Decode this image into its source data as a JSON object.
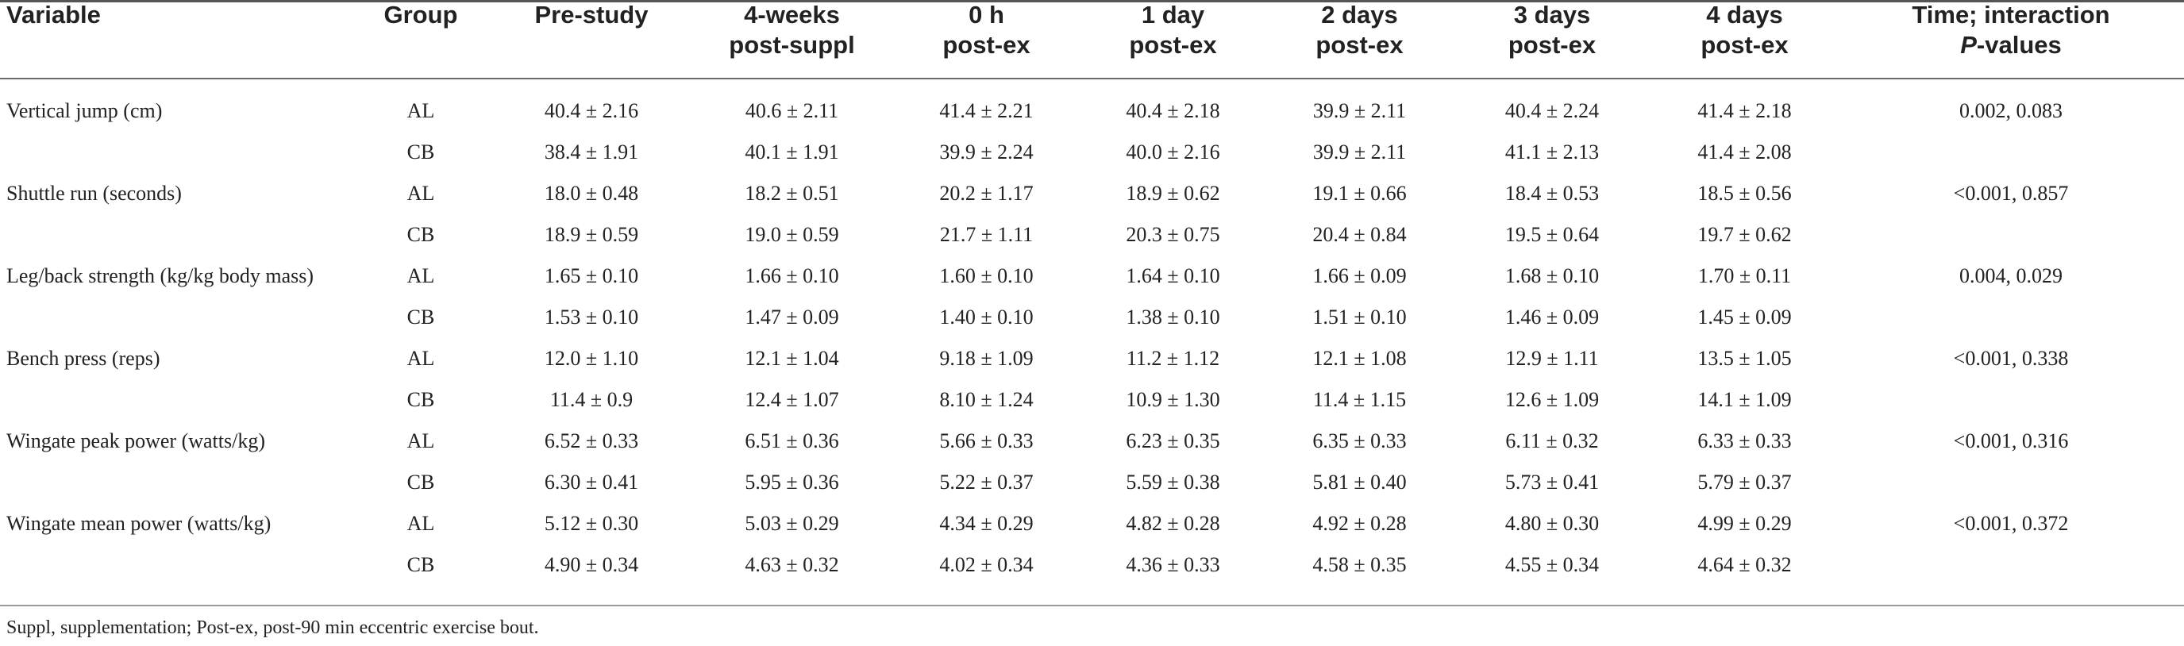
{
  "table": {
    "headers": {
      "variable": "Variable",
      "group": "Group",
      "pre_study": "Pre-study",
      "post_suppl_line1": "4-weeks",
      "post_suppl_line2": "post-suppl",
      "h0_line1": "0 h",
      "h0_line2": "post-ex",
      "d1_line1": "1 day",
      "d1_line2": "post-ex",
      "d2_line1": "2 days",
      "d2_line2": "post-ex",
      "d3_line1": "3 days",
      "d3_line2": "post-ex",
      "d4_line1": "4 days",
      "d4_line2": "post-ex",
      "pvals_line1": "Time; interaction",
      "pvals_line2_italic": "P",
      "pvals_line2_rest": "-values"
    },
    "rows": [
      {
        "variable": "Vertical jump (cm)",
        "group": "AL",
        "pre": "40.4 ± 2.16",
        "post_suppl": "40.6 ± 2.11",
        "h0": "41.4 ± 2.21",
        "d1": "40.4 ± 2.18",
        "d2": "39.9 ± 2.11",
        "d3": "40.4 ± 2.24",
        "d4": "41.4 ± 2.18",
        "pvals": "0.002, 0.083"
      },
      {
        "variable": "",
        "group": "CB",
        "pre": "38.4 ± 1.91",
        "post_suppl": "40.1 ± 1.91",
        "h0": "39.9 ± 2.24",
        "d1": "40.0 ± 2.16",
        "d2": "39.9 ± 2.11",
        "d3": "41.1 ± 2.13",
        "d4": "41.4 ± 2.08",
        "pvals": ""
      },
      {
        "variable": "Shuttle run (seconds)",
        "group": "AL",
        "pre": "18.0 ± 0.48",
        "post_suppl": "18.2 ± 0.51",
        "h0": "20.2 ± 1.17",
        "d1": "18.9 ± 0.62",
        "d2": "19.1 ± 0.66",
        "d3": "18.4 ± 0.53",
        "d4": "18.5 ± 0.56",
        "pvals": "<0.001, 0.857"
      },
      {
        "variable": "",
        "group": "CB",
        "pre": "18.9 ± 0.59",
        "post_suppl": "19.0 ± 0.59",
        "h0": "21.7 ± 1.11",
        "d1": "20.3 ± 0.75",
        "d2": "20.4 ± 0.84",
        "d3": "19.5 ± 0.64",
        "d4": "19.7 ± 0.62",
        "pvals": ""
      },
      {
        "variable": "Leg/back strength (kg/kg body mass)",
        "group": "AL",
        "pre": "1.65 ± 0.10",
        "post_suppl": "1.66 ± 0.10",
        "h0": "1.60 ± 0.10",
        "d1": "1.64 ± 0.10",
        "d2": "1.66 ± 0.09",
        "d3": "1.68 ± 0.10",
        "d4": "1.70 ± 0.11",
        "pvals": "0.004, 0.029"
      },
      {
        "variable": "",
        "group": "CB",
        "pre": "1.53 ± 0.10",
        "post_suppl": "1.47 ± 0.09",
        "h0": "1.40 ± 0.10",
        "d1": "1.38 ± 0.10",
        "d2": "1.51 ± 0.10",
        "d3": "1.46 ± 0.09",
        "d4": "1.45 ± 0.09",
        "pvals": ""
      },
      {
        "variable": "Bench press (reps)",
        "group": "AL",
        "pre": "12.0 ± 1.10",
        "post_suppl": "12.1 ± 1.04",
        "h0": "9.18 ± 1.09",
        "d1": "11.2 ± 1.12",
        "d2": "12.1 ± 1.08",
        "d3": "12.9 ± 1.11",
        "d4": "13.5 ± 1.05",
        "pvals": "<0.001, 0.338"
      },
      {
        "variable": "",
        "group": "CB",
        "pre": "11.4 ± 0.9",
        "post_suppl": "12.4 ± 1.07",
        "h0": "8.10 ± 1.24",
        "d1": "10.9 ± 1.30",
        "d2": "11.4 ± 1.15",
        "d3": "12.6 ± 1.09",
        "d4": "14.1 ± 1.09",
        "pvals": ""
      },
      {
        "variable": "Wingate peak power (watts/kg)",
        "group": "AL",
        "pre": "6.52 ± 0.33",
        "post_suppl": "6.51 ± 0.36",
        "h0": "5.66 ± 0.33",
        "d1": "6.23 ± 0.35",
        "d2": "6.35 ± 0.33",
        "d3": "6.11 ± 0.32",
        "d4": "6.33 ± 0.33",
        "pvals": "<0.001, 0.316"
      },
      {
        "variable": "",
        "group": "CB",
        "pre": "6.30 ± 0.41",
        "post_suppl": "5.95 ± 0.36",
        "h0": "5.22 ± 0.37",
        "d1": "5.59 ± 0.38",
        "d2": "5.81 ± 0.40",
        "d3": "5.73 ± 0.41",
        "d4": "5.79 ± 0.37",
        "pvals": ""
      },
      {
        "variable": "Wingate mean power (watts/kg)",
        "group": "AL",
        "pre": "5.12 ± 0.30",
        "post_suppl": "5.03 ± 0.29",
        "h0": "4.34 ± 0.29",
        "d1": "4.82 ± 0.28",
        "d2": "4.92 ± 0.28",
        "d3": "4.80 ± 0.30",
        "d4": "4.99 ± 0.29",
        "pvals": "<0.001, 0.372"
      },
      {
        "variable": "",
        "group": "CB",
        "pre": "4.90 ± 0.34",
        "post_suppl": "4.63 ± 0.32",
        "h0": "4.02 ± 0.34",
        "d1": "4.36 ± 0.33",
        "d2": "4.58 ± 0.35",
        "d3": "4.55 ± 0.34",
        "d4": "4.64 ± 0.32",
        "pvals": ""
      }
    ]
  },
  "footnote": "Suppl, supplementation; Post-ex, post-90 min eccentric exercise bout."
}
